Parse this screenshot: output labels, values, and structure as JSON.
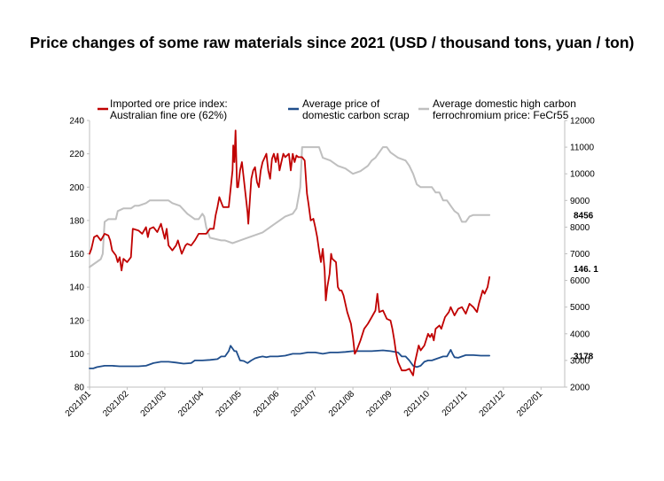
{
  "chart_data": {
    "type": "line",
    "title": "Price changes of some raw materials since 2021 (USD / thousand tons, yuan / ton)",
    "x_tick_labels": [
      "2021/01",
      "2021/02",
      "2021/03",
      "2021/04",
      "2021/05",
      "2021/06",
      "2021/07",
      "2021/08",
      "2021/09",
      "2021/10",
      "2021/11",
      "2021/12",
      "2022/01"
    ],
    "y_left": {
      "min": 80,
      "max": 240,
      "step": 20,
      "ticks": [
        "80",
        "100",
        "120",
        "140",
        "160",
        "180",
        "200",
        "220",
        "240"
      ]
    },
    "y_right": {
      "min": 2000,
      "max": 12000,
      "step": 1000,
      "ticks": [
        "2000",
        "3000",
        "4000",
        "5000",
        "6000",
        "7000",
        "8000",
        "9000",
        "10000",
        "11000",
        "12000"
      ]
    },
    "grid": false,
    "legend_position": "top",
    "series": [
      {
        "name": "Imported ore price index: Australian fine ore (62%)",
        "legend_lines": [
          "Imported ore price index:",
          "Australian fine ore (62%)"
        ],
        "axis": "left",
        "color": "#c00000",
        "end_label": "146. 1",
        "points": [
          [
            0,
            160
          ],
          [
            0.05,
            163
          ],
          [
            0.12,
            170
          ],
          [
            0.2,
            171
          ],
          [
            0.3,
            168
          ],
          [
            0.4,
            172
          ],
          [
            0.5,
            171
          ],
          [
            0.55,
            168
          ],
          [
            0.6,
            162
          ],
          [
            0.7,
            159
          ],
          [
            0.75,
            155
          ],
          [
            0.8,
            158
          ],
          [
            0.85,
            150
          ],
          [
            0.9,
            157
          ],
          [
            1.0,
            155
          ],
          [
            1.1,
            158
          ],
          [
            1.15,
            175
          ],
          [
            1.3,
            174
          ],
          [
            1.4,
            172
          ],
          [
            1.5,
            176
          ],
          [
            1.55,
            170
          ],
          [
            1.6,
            175
          ],
          [
            1.7,
            176
          ],
          [
            1.8,
            173
          ],
          [
            1.9,
            178
          ],
          [
            2.0,
            169
          ],
          [
            2.05,
            175
          ],
          [
            2.1,
            165
          ],
          [
            2.2,
            162
          ],
          [
            2.3,
            165
          ],
          [
            2.35,
            168
          ],
          [
            2.45,
            160
          ],
          [
            2.55,
            165
          ],
          [
            2.6,
            166
          ],
          [
            2.7,
            165
          ],
          [
            2.8,
            168
          ],
          [
            2.9,
            172
          ],
          [
            3.0,
            172
          ],
          [
            3.1,
            172
          ],
          [
            3.2,
            175
          ],
          [
            3.3,
            175
          ],
          [
            3.35,
            183
          ],
          [
            3.4,
            188
          ],
          [
            3.45,
            194
          ],
          [
            3.5,
            191
          ],
          [
            3.55,
            188
          ],
          [
            3.7,
            188
          ],
          [
            3.8,
            210
          ],
          [
            3.82,
            225
          ],
          [
            3.85,
            215
          ],
          [
            3.88,
            234
          ],
          [
            3.92,
            200
          ],
          [
            3.95,
            200
          ],
          [
            4.0,
            210
          ],
          [
            4.05,
            215
          ],
          [
            4.1,
            205
          ],
          [
            4.15,
            195
          ],
          [
            4.2,
            185
          ],
          [
            4.22,
            178
          ],
          [
            4.27,
            195
          ],
          [
            4.3,
            205
          ],
          [
            4.35,
            210
          ],
          [
            4.4,
            212
          ],
          [
            4.45,
            203
          ],
          [
            4.5,
            200
          ],
          [
            4.55,
            210
          ],
          [
            4.6,
            215
          ],
          [
            4.7,
            220
          ],
          [
            4.75,
            210
          ],
          [
            4.8,
            205
          ],
          [
            4.85,
            217
          ],
          [
            4.9,
            220
          ],
          [
            4.95,
            215
          ],
          [
            5.0,
            220
          ],
          [
            5.05,
            210
          ],
          [
            5.1,
            215
          ],
          [
            5.15,
            220
          ],
          [
            5.2,
            218
          ],
          [
            5.3,
            220
          ],
          [
            5.35,
            210
          ],
          [
            5.4,
            220
          ],
          [
            5.45,
            215
          ],
          [
            5.5,
            219
          ],
          [
            5.55,
            218
          ],
          [
            5.65,
            218
          ],
          [
            5.72,
            216
          ],
          [
            5.78,
            196
          ],
          [
            5.82,
            190
          ],
          [
            5.88,
            180
          ],
          [
            5.95,
            181
          ],
          [
            6.0,
            176
          ],
          [
            6.05,
            170
          ],
          [
            6.1,
            162
          ],
          [
            6.15,
            155
          ],
          [
            6.2,
            163
          ],
          [
            6.25,
            150
          ],
          [
            6.28,
            132
          ],
          [
            6.32,
            140
          ],
          [
            6.38,
            148
          ],
          [
            6.42,
            160
          ],
          [
            6.45,
            157
          ],
          [
            6.55,
            155
          ],
          [
            6.6,
            140
          ],
          [
            6.65,
            138
          ],
          [
            6.7,
            138
          ],
          [
            6.75,
            135
          ],
          [
            6.85,
            125
          ],
          [
            6.95,
            118
          ],
          [
            7.0,
            110
          ],
          [
            7.05,
            100
          ],
          [
            7.1,
            102
          ],
          [
            7.2,
            108
          ],
          [
            7.3,
            115
          ],
          [
            7.4,
            118
          ],
          [
            7.5,
            122
          ],
          [
            7.6,
            126
          ],
          [
            7.65,
            136
          ],
          [
            7.7,
            125
          ],
          [
            7.8,
            126
          ],
          [
            7.9,
            121
          ],
          [
            8.0,
            120
          ],
          [
            8.05,
            115
          ],
          [
            8.1,
            108
          ],
          [
            8.15,
            100
          ],
          [
            8.2,
            95
          ],
          [
            8.3,
            90
          ],
          [
            8.4,
            90
          ],
          [
            8.5,
            91
          ],
          [
            8.6,
            87
          ],
          [
            8.65,
            95
          ],
          [
            8.7,
            100
          ],
          [
            8.75,
            105
          ],
          [
            8.8,
            102
          ],
          [
            8.9,
            105
          ],
          [
            9.0,
            112
          ],
          [
            9.05,
            110
          ],
          [
            9.1,
            112
          ],
          [
            9.15,
            108
          ],
          [
            9.2,
            115
          ],
          [
            9.3,
            117
          ],
          [
            9.35,
            115
          ],
          [
            9.45,
            122
          ],
          [
            9.55,
            125
          ],
          [
            9.6,
            128
          ],
          [
            9.7,
            123
          ],
          [
            9.8,
            127
          ],
          [
            9.9,
            128
          ],
          [
            10.0,
            124
          ],
          [
            10.1,
            130
          ],
          [
            10.2,
            128
          ],
          [
            10.3,
            125
          ],
          [
            10.35,
            130
          ],
          [
            10.45,
            138
          ],
          [
            10.5,
            136
          ],
          [
            10.58,
            140
          ],
          [
            10.63,
            146
          ]
        ]
      },
      {
        "name": "Average price of domestic carbon scrap",
        "legend_lines": [
          "Average price of",
          "domestic carbon scrap"
        ],
        "axis": "right",
        "color": "#1f4e8c",
        "end_label": "3178",
        "points": [
          [
            0,
            2700
          ],
          [
            0.1,
            2700
          ],
          [
            0.2,
            2750
          ],
          [
            0.4,
            2800
          ],
          [
            0.6,
            2800
          ],
          [
            0.8,
            2780
          ],
          [
            1.0,
            2780
          ],
          [
            1.3,
            2780
          ],
          [
            1.5,
            2800
          ],
          [
            1.7,
            2900
          ],
          [
            1.9,
            2950
          ],
          [
            2.1,
            2950
          ],
          [
            2.3,
            2920
          ],
          [
            2.5,
            2880
          ],
          [
            2.7,
            2900
          ],
          [
            2.8,
            3000
          ],
          [
            3.0,
            3000
          ],
          [
            3.2,
            3020
          ],
          [
            3.4,
            3050
          ],
          [
            3.5,
            3150
          ],
          [
            3.6,
            3150
          ],
          [
            3.7,
            3350
          ],
          [
            3.75,
            3550
          ],
          [
            3.8,
            3450
          ],
          [
            3.85,
            3350
          ],
          [
            3.9,
            3350
          ],
          [
            4.0,
            3000
          ],
          [
            4.1,
            2980
          ],
          [
            4.2,
            2900
          ],
          [
            4.3,
            3000
          ],
          [
            4.4,
            3080
          ],
          [
            4.5,
            3120
          ],
          [
            4.6,
            3150
          ],
          [
            4.7,
            3120
          ],
          [
            4.8,
            3150
          ],
          [
            5.0,
            3150
          ],
          [
            5.2,
            3180
          ],
          [
            5.4,
            3250
          ],
          [
            5.6,
            3250
          ],
          [
            5.8,
            3300
          ],
          [
            6.0,
            3300
          ],
          [
            6.2,
            3250
          ],
          [
            6.4,
            3300
          ],
          [
            6.6,
            3300
          ],
          [
            6.8,
            3320
          ],
          [
            7.0,
            3350
          ],
          [
            7.2,
            3350
          ],
          [
            7.5,
            3350
          ],
          [
            7.8,
            3380
          ],
          [
            8.0,
            3350
          ],
          [
            8.2,
            3300
          ],
          [
            8.3,
            3150
          ],
          [
            8.4,
            3150
          ],
          [
            8.5,
            3000
          ],
          [
            8.6,
            2800
          ],
          [
            8.7,
            2750
          ],
          [
            8.8,
            2800
          ],
          [
            8.9,
            2950
          ],
          [
            9.0,
            3000
          ],
          [
            9.1,
            3000
          ],
          [
            9.2,
            3050
          ],
          [
            9.3,
            3100
          ],
          [
            9.4,
            3150
          ],
          [
            9.5,
            3150
          ],
          [
            9.6,
            3400
          ],
          [
            9.65,
            3250
          ],
          [
            9.7,
            3120
          ],
          [
            9.8,
            3100
          ],
          [
            9.9,
            3150
          ],
          [
            10.0,
            3200
          ],
          [
            10.2,
            3200
          ],
          [
            10.4,
            3180
          ],
          [
            10.63,
            3178
          ]
        ]
      },
      {
        "name": "Average domestic high carbon ferrochromium price: FeCr55",
        "legend_lines": [
          "Average domestic high carbon",
          "ferrochromium price: FeCr55"
        ],
        "axis": "right",
        "color": "#bfbfbf",
        "end_label": "8456",
        "points": [
          [
            0,
            6500
          ],
          [
            0.1,
            6600
          ],
          [
            0.2,
            6700
          ],
          [
            0.3,
            6800
          ],
          [
            0.35,
            7000
          ],
          [
            0.4,
            8200
          ],
          [
            0.5,
            8300
          ],
          [
            0.7,
            8300
          ],
          [
            0.75,
            8600
          ],
          [
            0.9,
            8700
          ],
          [
            1.0,
            8700
          ],
          [
            1.1,
            8700
          ],
          [
            1.2,
            8800
          ],
          [
            1.3,
            8800
          ],
          [
            1.5,
            8900
          ],
          [
            1.6,
            9000
          ],
          [
            1.8,
            9000
          ],
          [
            2.0,
            9000
          ],
          [
            2.1,
            9000
          ],
          [
            2.2,
            8900
          ],
          [
            2.4,
            8800
          ],
          [
            2.6,
            8500
          ],
          [
            2.8,
            8300
          ],
          [
            2.9,
            8300
          ],
          [
            3.0,
            8500
          ],
          [
            3.05,
            8400
          ],
          [
            3.1,
            8000
          ],
          [
            3.2,
            7600
          ],
          [
            3.5,
            7500
          ],
          [
            3.6,
            7500
          ],
          [
            3.8,
            7400
          ],
          [
            4.0,
            7500
          ],
          [
            4.2,
            7600
          ],
          [
            4.4,
            7700
          ],
          [
            4.6,
            7800
          ],
          [
            4.8,
            8000
          ],
          [
            5.0,
            8200
          ],
          [
            5.2,
            8400
          ],
          [
            5.4,
            8500
          ],
          [
            5.5,
            8700
          ],
          [
            5.6,
            9500
          ],
          [
            5.65,
            11000
          ],
          [
            5.7,
            11000
          ],
          [
            6.1,
            11000
          ],
          [
            6.2,
            10600
          ],
          [
            6.4,
            10500
          ],
          [
            6.6,
            10300
          ],
          [
            6.8,
            10200
          ],
          [
            7.0,
            10000
          ],
          [
            7.2,
            10100
          ],
          [
            7.4,
            10300
          ],
          [
            7.5,
            10500
          ],
          [
            7.6,
            10600
          ],
          [
            7.8,
            11000
          ],
          [
            7.9,
            11000
          ],
          [
            8.0,
            10800
          ],
          [
            8.2,
            10600
          ],
          [
            8.4,
            10500
          ],
          [
            8.5,
            10300
          ],
          [
            8.6,
            10000
          ],
          [
            8.7,
            9600
          ],
          [
            8.8,
            9500
          ],
          [
            9.0,
            9500
          ],
          [
            9.1,
            9500
          ],
          [
            9.2,
            9300
          ],
          [
            9.3,
            9300
          ],
          [
            9.4,
            9000
          ],
          [
            9.5,
            9000
          ],
          [
            9.6,
            8800
          ],
          [
            9.7,
            8600
          ],
          [
            9.8,
            8500
          ],
          [
            9.9,
            8200
          ],
          [
            10.0,
            8200
          ],
          [
            10.1,
            8400
          ],
          [
            10.2,
            8456
          ],
          [
            10.63,
            8456
          ]
        ]
      }
    ]
  }
}
